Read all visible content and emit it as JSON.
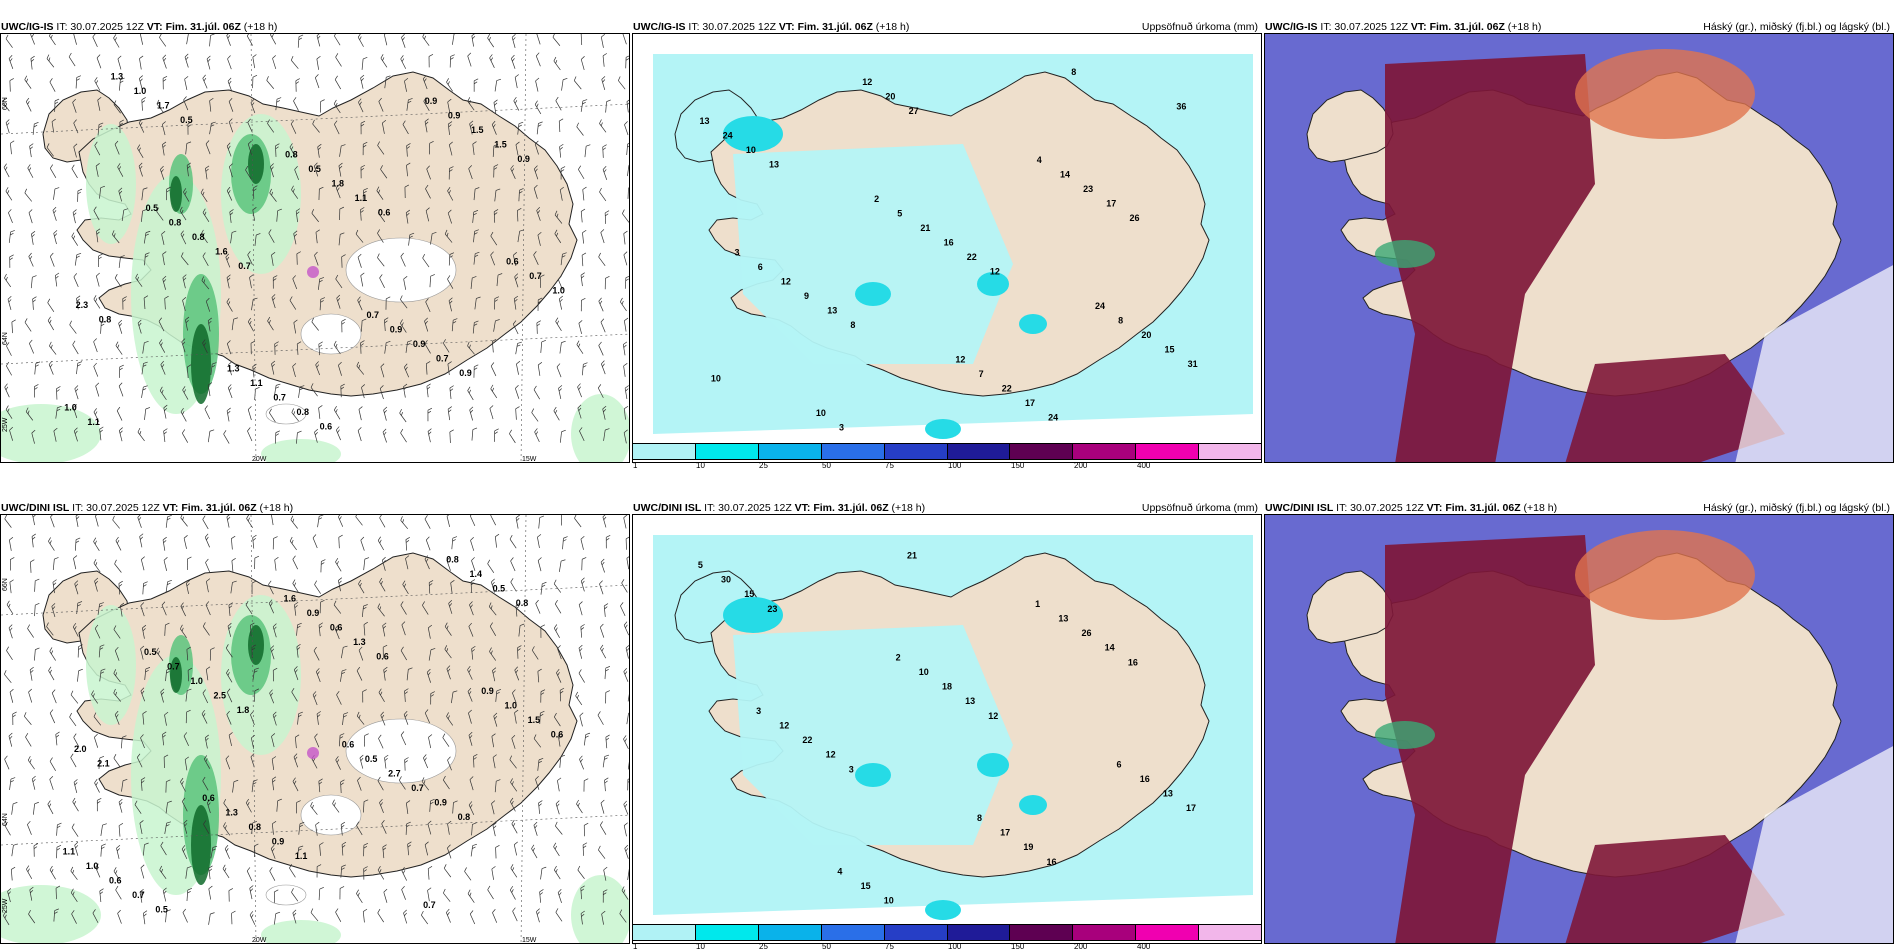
{
  "panels": [
    {
      "id": "top-left",
      "model": "UWC/IG-IS",
      "init": "IT: 30.07.2025 12Z",
      "vt_label": "VT:",
      "valid": "Fim. 31.júl. 06Z",
      "lead": "(+18 h)",
      "right_title": "",
      "kind": "wind-precip",
      "values": [
        "0.5",
        "0.6",
        "0.9",
        "0.8",
        "0.7",
        "0.6",
        "0.9",
        "1.7",
        "0.8",
        "0.7",
        "2.3",
        "1.6",
        "1.1",
        "1.5",
        "1.0",
        "0.7",
        "0.9",
        "1.0",
        "0.8",
        "1.8",
        "1.5",
        "1.3",
        "1.1",
        "0.9",
        "0.7",
        "0.8",
        "0.5",
        "0.9",
        "1.1",
        "1.3",
        "0.7",
        "0.6",
        "0.5",
        "0.8",
        "0.9",
        "1.0"
      ]
    },
    {
      "id": "top-middle",
      "model": "UWC/IG-IS",
      "init": "IT: 30.07.2025 12Z",
      "vt_label": "VT:",
      "valid": "Fim. 31.júl. 06Z",
      "lead": "(+18 h)",
      "right_title": "Uppsöfnuð úrkoma (mm)",
      "kind": "accum",
      "values": [
        "8",
        "10",
        "8",
        "12",
        "26",
        "13",
        "27",
        "24",
        "31",
        "13",
        "22",
        "17",
        "10",
        "20",
        "17",
        "15",
        "9",
        "16",
        "23",
        "24",
        "12",
        "22",
        "20",
        "12",
        "21",
        "14",
        "13",
        "3",
        "7",
        "8",
        "6",
        "5",
        "4",
        "36",
        "10",
        "12",
        "24",
        "3",
        "2"
      ]
    },
    {
      "id": "top-right",
      "model": "UWC/IG-IS",
      "init": "IT: 30.07.2025 12Z",
      "vt_label": "VT:",
      "valid": "Fim. 31.júl. 06Z",
      "lead": "(+18 h)",
      "right_title": "Háský (gr.), miðský (fj.bl.) og lágský (bl.)",
      "kind": "cloud",
      "values": []
    },
    {
      "id": "bottom-left",
      "model": "UWC/DINI ISL",
      "init": "IT: 30.07.2025 12Z",
      "vt_label": "VT:",
      "valid": "Fim. 31.júl. 06Z",
      "lead": "(+18 h)",
      "right_title": "",
      "kind": "wind-precip",
      "values": [
        "0.8",
        "2.1",
        "1.8",
        "0.6",
        "0.8",
        "0.5",
        "1.1",
        "0.9",
        "2.0",
        "2.5",
        "1.3",
        "0.5",
        "0.7",
        "0.9",
        "0.7",
        "0.6",
        "1.0",
        "0.6",
        "1.4",
        "0.6",
        "0.8",
        "2.7",
        "1.5",
        "0.7",
        "0.9",
        "0.8",
        "1.0",
        "1.3",
        "0.5",
        "1.0",
        "0.5",
        "1.6",
        "0.7",
        "1.1",
        "0.6",
        "0.6",
        "0.9"
      ]
    },
    {
      "id": "bottom-middle",
      "model": "UWC/DINI ISL",
      "init": "IT: 30.07.2025 12Z",
      "vt_label": "VT:",
      "valid": "Fim. 31.júl. 06Z",
      "lead": "(+18 h)",
      "right_title": "Uppsöfnuð úrkoma (mm)",
      "kind": "accum",
      "values": [
        "3",
        "12",
        "16",
        "23",
        "21",
        "16",
        "17",
        "12",
        "13",
        "14",
        "15",
        "10",
        "19",
        "13",
        "22",
        "18",
        "26",
        "30",
        "15",
        "17",
        "16",
        "12",
        "10",
        "13",
        "5",
        "4",
        "8",
        "6",
        "3",
        "2",
        "1"
      ]
    },
    {
      "id": "bottom-right",
      "model": "UWC/DINI ISL",
      "init": "IT: 30.07.2025 12Z",
      "vt_label": "VT:",
      "valid": "Fim. 31.júl. 06Z",
      "lead": "(+18 h)",
      "right_title": "Háský (gr.), miðský (fj.bl.) og lágský (bl.)",
      "kind": "cloud",
      "values": []
    }
  ],
  "axis_labels": {
    "lon": [
      "20W",
      "15W"
    ],
    "lat": [
      "66N",
      "64N",
      "25W"
    ]
  },
  "colorbar": {
    "ticks": [
      "1",
      "10",
      "25",
      "50",
      "75",
      "100",
      "150",
      "200",
      "400"
    ],
    "colors": [
      "#b0f2f5",
      "#00e8ec",
      "#0ab2ea",
      "#2a6fe8",
      "#263ec6",
      "#1f1b98",
      "#5e0052",
      "#a8007c",
      "#f000b0",
      "#f2b6ea"
    ]
  },
  "colors": {
    "land": "#eedfcc",
    "precip_light": "#c8f5cf",
    "precip_mid": "#5cc47c",
    "precip_dark": "#0f6a2a",
    "accum_light": "#b4f4f6",
    "accum_mid": "#26dbe6",
    "high_cloud": "#7e1738",
    "mid_cloud": "#e0744e",
    "low_cloud": "#4e50c8"
  }
}
